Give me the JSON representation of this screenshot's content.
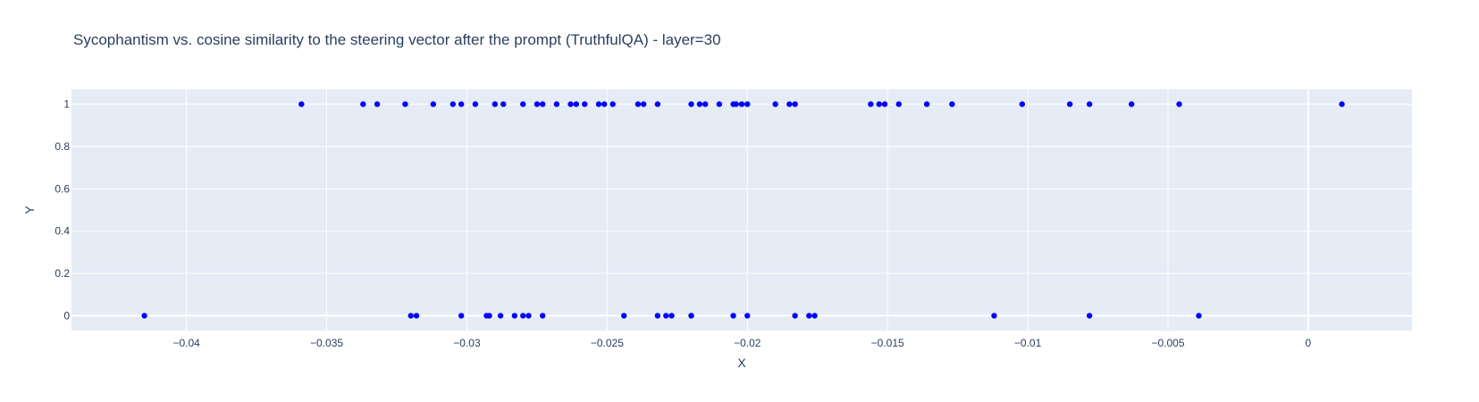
{
  "chart_data": {
    "type": "scatter",
    "title": "Sycophantism vs. cosine similarity to the steering vector after the prompt (TruthfulQA) - layer=30",
    "xlabel": "X",
    "ylabel": "Y",
    "xlim": [
      -0.0441,
      0.0037
    ],
    "ylim": [
      -0.07,
      1.07
    ],
    "xticks": [
      -0.04,
      -0.035,
      -0.03,
      -0.025,
      -0.02,
      -0.015,
      -0.01,
      -0.005,
      0
    ],
    "xtick_labels": [
      "−0.04",
      "−0.035",
      "−0.03",
      "−0.025",
      "−0.02",
      "−0.015",
      "−0.01",
      "−0.005",
      "0"
    ],
    "yticks": [
      0,
      0.2,
      0.4,
      0.6,
      0.8,
      1
    ],
    "ytick_labels": [
      "0",
      "0.2",
      "0.4",
      "0.6",
      "0.8",
      "1"
    ],
    "grid": true,
    "plot_background": "#e5ecf6",
    "marker_color": "#0000ff",
    "series": [
      {
        "points_y1_x": [
          -0.0359,
          -0.0337,
          -0.0332,
          -0.0322,
          -0.0312,
          -0.0305,
          -0.0302,
          -0.0297,
          -0.029,
          -0.0287,
          -0.028,
          -0.0275,
          -0.0273,
          -0.0268,
          -0.0263,
          -0.0261,
          -0.0258,
          -0.0253,
          -0.0251,
          -0.0248,
          -0.0239,
          -0.0237,
          -0.0232,
          -0.022,
          -0.0217,
          -0.0215,
          -0.021,
          -0.0205,
          -0.0204,
          -0.0202,
          -0.02,
          -0.019,
          -0.0185,
          -0.0183,
          -0.0156,
          -0.0153,
          -0.0151,
          -0.0146,
          -0.0136,
          -0.0127,
          -0.0102,
          -0.0085,
          -0.0078,
          -0.0063,
          -0.0046,
          0.0012
        ],
        "points_y0_x": [
          -0.0415,
          -0.032,
          -0.0318,
          -0.0302,
          -0.0293,
          -0.0292,
          -0.0288,
          -0.0283,
          -0.028,
          -0.0278,
          -0.0273,
          -0.0244,
          -0.0232,
          -0.0229,
          -0.0227,
          -0.022,
          -0.022,
          -0.0205,
          -0.02,
          -0.0183,
          -0.0178,
          -0.0176,
          -0.0112,
          -0.0078,
          -0.0039
        ]
      }
    ]
  }
}
